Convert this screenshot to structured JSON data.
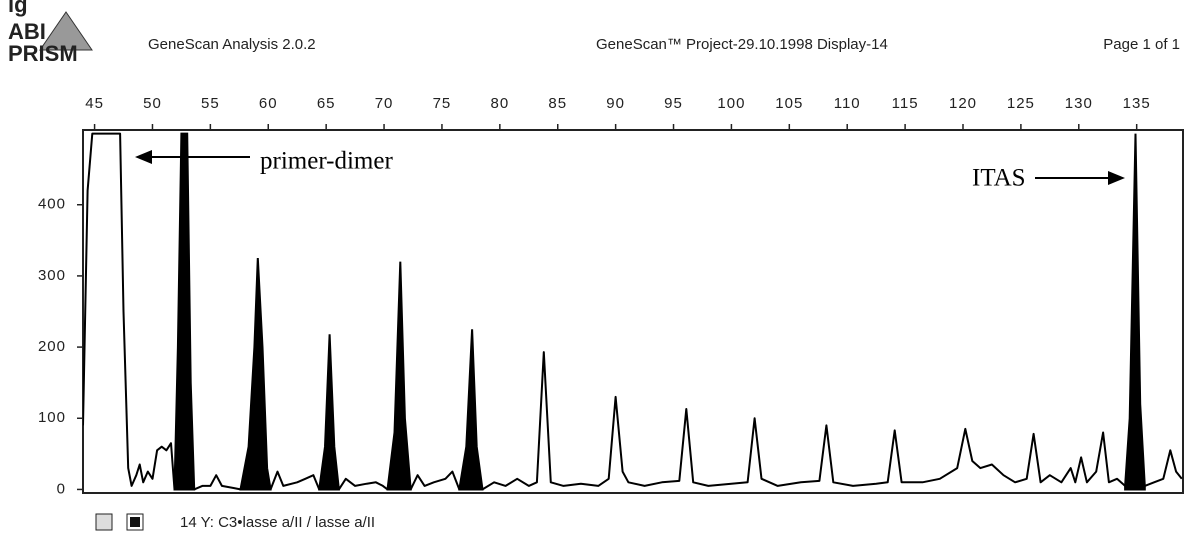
{
  "header": {
    "fig": "ig",
    "logo_top": "ABI",
    "logo_bottom": "PRISM",
    "app": "GeneScan Analysis 2.0.2",
    "project": "GeneScan™ Project-29.10.1998 Display-14",
    "page": "Page 1 of 1"
  },
  "footer": "14 Y: C3•lasse a/II / lasse a/II",
  "chart_data": {
    "type": "line",
    "color": "#000000",
    "xlim": [
      44,
      139
    ],
    "xticks": [
      45,
      50,
      55,
      60,
      65,
      70,
      75,
      80,
      85,
      90,
      95,
      100,
      105,
      110,
      115,
      120,
      125,
      130,
      135
    ],
    "ylim": [
      -5,
      505
    ],
    "yticks": [
      0,
      100,
      200,
      300,
      400
    ],
    "annotations": [
      {
        "text": "primer-dimer"
      },
      {
        "text": "ITAS"
      }
    ],
    "series": [
      {
        "filled": false,
        "x": [
          44.0,
          44.4,
          44.8,
          47.2,
          47.5,
          47.9,
          48.2,
          48.6,
          48.9,
          49.2,
          49.6,
          50.0,
          50.4,
          50.8,
          51.2,
          51.6,
          51.9
        ],
        "values": [
          90,
          420,
          500,
          500,
          250,
          30,
          5,
          20,
          35,
          10,
          25,
          15,
          55,
          60,
          55,
          65,
          0
        ]
      },
      {
        "filled": true,
        "x": [
          51.9,
          52.2,
          52.5,
          53.0,
          53.3,
          53.6
        ],
        "values": [
          0,
          200,
          500,
          500,
          150,
          0
        ]
      },
      {
        "filled": false,
        "x": [
          53.6,
          54.3,
          55.0,
          55.5,
          56.0,
          57.0,
          57.6
        ],
        "values": [
          0,
          5,
          5,
          20,
          5,
          2,
          0
        ]
      },
      {
        "filled": true,
        "x": [
          57.6,
          58.3,
          58.8,
          59.1,
          59.5,
          59.9,
          60.2
        ],
        "values": [
          0,
          60,
          200,
          325,
          200,
          30,
          0
        ]
      },
      {
        "filled": false,
        "x": [
          60.2,
          60.8,
          61.3,
          62.5,
          63.2,
          63.9,
          64.4
        ],
        "values": [
          0,
          25,
          5,
          10,
          15,
          20,
          0
        ]
      },
      {
        "filled": true,
        "x": [
          64.4,
          64.9,
          65.3,
          65.7,
          66.1
        ],
        "values": [
          0,
          60,
          218,
          60,
          0
        ]
      },
      {
        "filled": false,
        "x": [
          66.1,
          66.7,
          67.5,
          68.5,
          69.3,
          69.9,
          70.3
        ],
        "values": [
          0,
          15,
          5,
          8,
          10,
          5,
          0
        ]
      },
      {
        "filled": true,
        "x": [
          70.3,
          70.9,
          71.4,
          71.8,
          72.3
        ],
        "values": [
          0,
          80,
          320,
          100,
          0
        ]
      },
      {
        "filled": false,
        "x": [
          72.3,
          72.9,
          73.5,
          74.3,
          75.3,
          75.9,
          76.5
        ],
        "values": [
          0,
          20,
          5,
          10,
          15,
          25,
          0
        ]
      },
      {
        "filled": true,
        "x": [
          76.5,
          77.1,
          77.6,
          78.0,
          78.5
        ],
        "values": [
          0,
          60,
          225,
          60,
          0
        ]
      },
      {
        "filled": false,
        "x": [
          78.5,
          79.5,
          80.5,
          81.5,
          82.5,
          83.2,
          83.8,
          84.4,
          85.5,
          87.0,
          88.5,
          89.4,
          90.0,
          90.6,
          91.1,
          92.5,
          94.0,
          95.5,
          96.1,
          96.7,
          98.0,
          100.0,
          101.4,
          102.0,
          102.6,
          104.0,
          106.0,
          107.6,
          108.2,
          108.8,
          110.5,
          112.5,
          113.5,
          114.1,
          114.7,
          116.5,
          118.0,
          119.5,
          120.2,
          120.8,
          121.5,
          122.5,
          123.5,
          124.5,
          125.5,
          126.1,
          126.7,
          127.5,
          128.5,
          129.3,
          129.7,
          130.2,
          130.7,
          131.5,
          132.1,
          132.6,
          133.3,
          134.0
        ],
        "values": [
          0,
          10,
          5,
          15,
          5,
          10,
          193,
          10,
          5,
          8,
          5,
          15,
          130,
          25,
          10,
          5,
          10,
          12,
          113,
          10,
          5,
          8,
          10,
          100,
          15,
          5,
          10,
          12,
          90,
          10,
          5,
          8,
          10,
          83,
          10,
          10,
          15,
          30,
          85,
          40,
          30,
          35,
          20,
          10,
          15,
          78,
          10,
          20,
          10,
          30,
          10,
          45,
          10,
          25,
          80,
          10,
          15,
          5
        ]
      },
      {
        "filled": true,
        "x": [
          134.0,
          134.4,
          134.9,
          135.3,
          135.7
        ],
        "values": [
          5,
          100,
          500,
          120,
          5
        ]
      },
      {
        "filled": false,
        "x": [
          135.7,
          136.5,
          137.3,
          137.9,
          138.4,
          138.9
        ],
        "values": [
          5,
          10,
          15,
          55,
          25,
          15
        ]
      }
    ]
  }
}
